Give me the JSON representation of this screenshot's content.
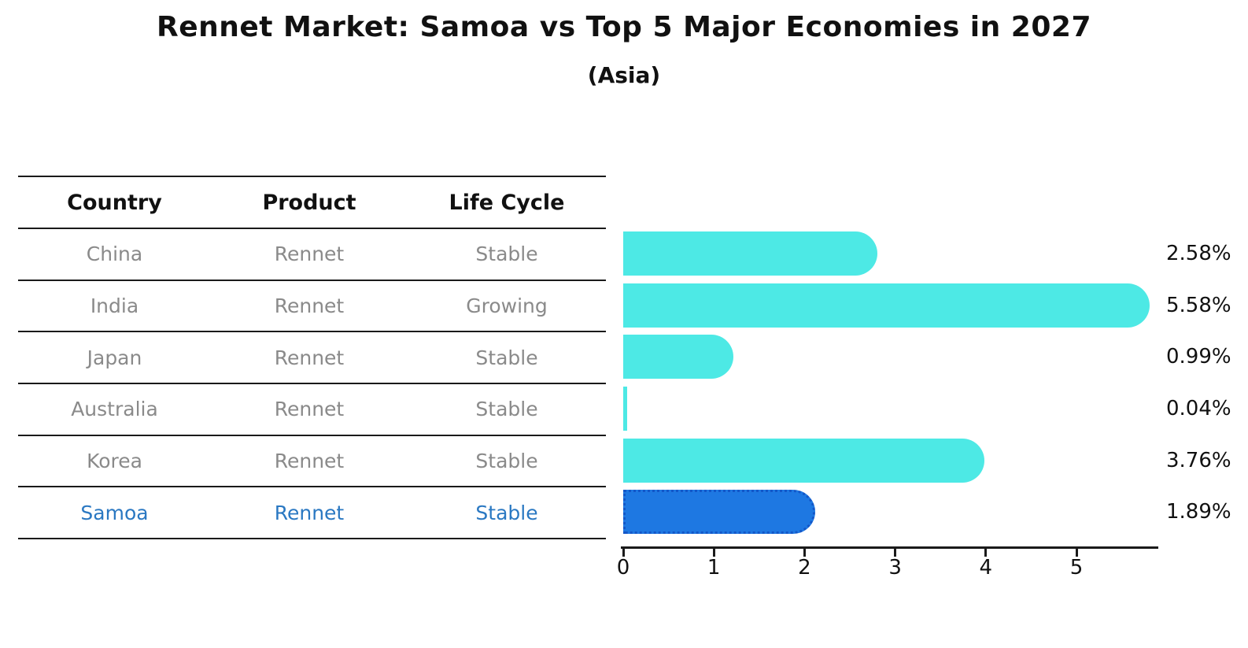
{
  "header": {
    "title": "Rennet Market: Samoa vs Top 5 Major Economies in 2027",
    "subtitle": "(Asia)"
  },
  "table": {
    "columns": [
      "Country",
      "Product",
      "Life Cycle"
    ],
    "rows": [
      {
        "country": "China",
        "product": "Rennet",
        "life_cycle": "Stable"
      },
      {
        "country": "India",
        "product": "Rennet",
        "life_cycle": "Growing"
      },
      {
        "country": "Japan",
        "product": "Rennet",
        "life_cycle": "Stable"
      },
      {
        "country": "Australia",
        "product": "Rennet",
        "life_cycle": "Stable"
      },
      {
        "country": "Korea",
        "product": "Rennet",
        "life_cycle": "Stable"
      },
      {
        "country": "Samoa",
        "product": "Rennet",
        "life_cycle": "Stable"
      }
    ]
  },
  "chart_data": {
    "type": "bar",
    "orientation": "horizontal",
    "title": "Rennet Market: Samoa vs Top 5 Major Economies in 2027",
    "subtitle": "(Asia)",
    "categories": [
      "China",
      "India",
      "Japan",
      "Australia",
      "Korea",
      "Samoa"
    ],
    "values": [
      2.58,
      5.58,
      0.99,
      0.04,
      3.76,
      1.89
    ],
    "value_labels": [
      "2.58%",
      "5.58%",
      "0.99%",
      "0.04%",
      "3.76%",
      "1.89%"
    ],
    "x_ticks": [
      "0",
      "1",
      "2",
      "3",
      "4",
      "5"
    ],
    "xlim": [
      0,
      5.9
    ],
    "grid": false,
    "legend": "none",
    "bar_color": "#4DE9E5",
    "highlight_color": "#1E78E2",
    "highlight_edge_color": "#1357C8",
    "highlight_index": 5,
    "highlight_category": "Samoa"
  }
}
